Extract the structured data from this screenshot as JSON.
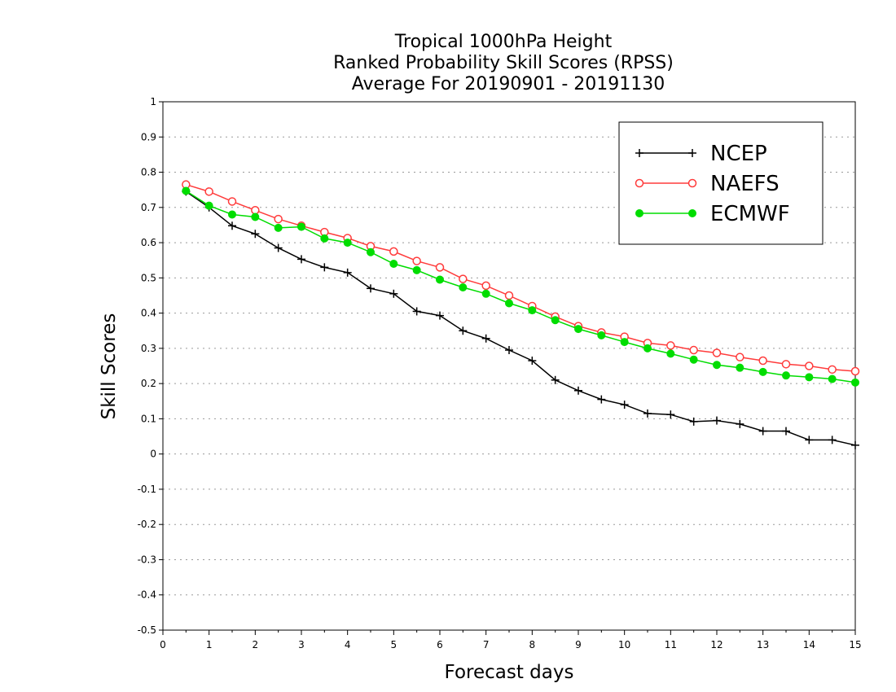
{
  "chart_data": {
    "type": "line",
    "title": [
      "Tropical 1000hPa Height",
      "Ranked Probability Skill Scores (RPSS)",
      "Average For 20190901 - 20191130"
    ],
    "xlabel": "Forecast days",
    "ylabel": "Skill Scores",
    "xlim": [
      0,
      15
    ],
    "ylim": [
      -0.5,
      1
    ],
    "xticks": [
      "0",
      "1",
      "2",
      "3",
      "4",
      "5",
      "6",
      "7",
      "8",
      "9",
      "10",
      "11",
      "12",
      "13",
      "14",
      "15"
    ],
    "yticks": [
      "1",
      "0.9",
      "0.8",
      "0.7",
      "0.6",
      "0.5",
      "0.4",
      "0.3",
      "0.2",
      "0.1",
      "0",
      "-0.1",
      "-0.2",
      "-0.3",
      "-0.4",
      "-0.5"
    ],
    "grid": "horizontal dotted",
    "legend_position": "top-right",
    "x": [
      0.5,
      1,
      1.5,
      2,
      2.5,
      3,
      3.5,
      4,
      4.5,
      5,
      5.5,
      6,
      6.5,
      7,
      7.5,
      8,
      8.5,
      9,
      9.5,
      10,
      10.5,
      11,
      11.5,
      12,
      12.5,
      13,
      13.5,
      14,
      14.5,
      15
    ],
    "series": [
      {
        "name": "NCEP",
        "color": "#000000",
        "marker": "plus",
        "values": [
          0.745,
          0.7,
          0.648,
          0.625,
          0.585,
          0.553,
          0.53,
          0.515,
          0.47,
          0.455,
          0.405,
          0.393,
          0.35,
          0.328,
          0.295,
          0.265,
          0.21,
          0.18,
          0.155,
          0.14,
          0.115,
          0.112,
          0.092,
          0.095,
          0.085,
          0.065,
          0.065,
          0.04,
          0.04,
          0.025
        ]
      },
      {
        "name": "NAEFS",
        "color": "#ff3b3b",
        "marker": "open-circle",
        "values": [
          0.765,
          0.745,
          0.717,
          0.692,
          0.667,
          0.648,
          0.63,
          0.613,
          0.59,
          0.575,
          0.548,
          0.53,
          0.497,
          0.478,
          0.45,
          0.42,
          0.39,
          0.363,
          0.345,
          0.333,
          0.315,
          0.308,
          0.295,
          0.287,
          0.275,
          0.265,
          0.255,
          0.25,
          0.24,
          0.235
        ]
      },
      {
        "name": "ECMWF",
        "color": "#00dd00",
        "marker": "filled-circle",
        "values": [
          0.747,
          0.705,
          0.68,
          0.673,
          0.642,
          0.645,
          0.612,
          0.6,
          0.573,
          0.54,
          0.522,
          0.495,
          0.473,
          0.455,
          0.428,
          0.408,
          0.38,
          0.355,
          0.337,
          0.318,
          0.3,
          0.285,
          0.268,
          0.253,
          0.245,
          0.233,
          0.223,
          0.218,
          0.213,
          0.203
        ]
      }
    ]
  }
}
